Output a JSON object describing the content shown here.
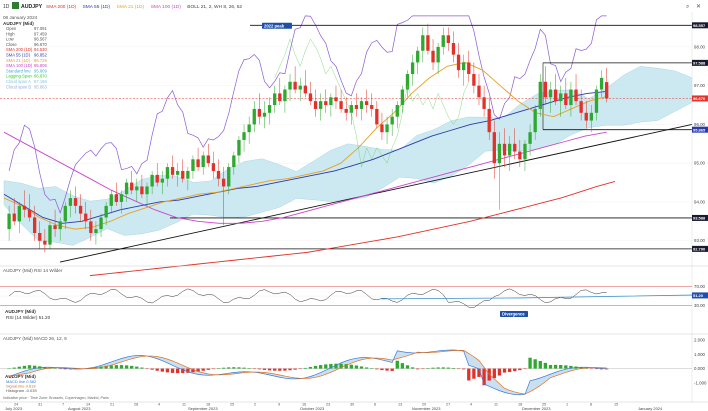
{
  "header": {
    "timeframe": "1D",
    "symbol": "AUDJPY",
    "indicators": [
      {
        "text": "SMA 200 (1D)",
        "color": "#e0322a"
      },
      {
        "text": "SMA 55 (1D)",
        "color": "#2a3aa8"
      },
      {
        "text": "SMA 21 (1D)",
        "color": "#e8a020"
      },
      {
        "text": "SMA 100 (1D)",
        "color": "#cc44cc"
      },
      {
        "text": "BOLL 21, 2, WH 8, 26, 52",
        "color": "#444444"
      }
    ]
  },
  "info_panel": {
    "date": "08 January 2024",
    "symbol_mid": "AUDJPY (Mid)",
    "rows": [
      {
        "label": "Open",
        "value": "97.091",
        "color": "#555555"
      },
      {
        "label": "High",
        "value": "97.459",
        "color": "#555555"
      },
      {
        "label": "Low",
        "value": "96.567",
        "color": "#555555"
      },
      {
        "label": "Close",
        "value": "96.670",
        "color": "#555555"
      },
      {
        "label": "SMA 200 (1D)",
        "value": "94.530",
        "color": "#e0322a"
      },
      {
        "label": "SMA 55 (1D)",
        "value": "96.852",
        "color": "#2a3aa8"
      },
      {
        "label": "SMA 21 (1D)",
        "value": "96.725",
        "color": "#e8a020"
      },
      {
        "label": "SMA 100 (1D)",
        "value": "95.806",
        "color": "#cc44cc"
      },
      {
        "label": "Standard line",
        "value": "95.809",
        "color": "#3aaed8"
      },
      {
        "label": "Lagging Span",
        "value": "96.670",
        "color": "#33cc33"
      },
      {
        "label": "Cloud span A",
        "value": "97.166",
        "color": "#7ec8e3"
      },
      {
        "label": "Cloud span B",
        "value": "95.863",
        "color": "#9ad"
      }
    ]
  },
  "annotations": {
    "peak_label": "2022 peak",
    "divergence_label": "Divergence"
  },
  "price_axis": {
    "labels": [
      "98.00",
      "97.00",
      "96.00",
      "95.00",
      "94.00",
      "93.00"
    ],
    "badges": [
      {
        "text": "98.557",
        "color": "#1a1a2e"
      },
      {
        "text": "97.588",
        "color": "#1a1a2e"
      },
      {
        "text": "96.670",
        "color": "#e0322a"
      },
      {
        "text": "95.865",
        "color": "#2a3aa8"
      },
      {
        "text": "93.588",
        "color": "#1a1a2e"
      },
      {
        "text": "92.790",
        "color": "#1a1a2e"
      }
    ]
  },
  "rsi_panel": {
    "title": "AUDJPY (Mid) RSI 14 Wilder",
    "value_line": "RSI (14 Wilder) 51.20",
    "axis_labels": [
      "70.00",
      "30.00"
    ]
  },
  "macd_panel": {
    "title": "AUDJPY (Mid) MACD 26, 12, 9",
    "legend": [
      {
        "text": "MACD line 0.582",
        "color": "#3a7bd5"
      },
      {
        "text": "Signal line 0.618",
        "color": "#e07020"
      },
      {
        "text": "Histogram -0.039",
        "color": "#555555"
      }
    ],
    "axis_labels": [
      "2.000",
      "1.000",
      "0.000",
      "-1.000"
    ]
  },
  "time_axis": {
    "months": [
      "July 2023",
      "August 2023",
      "September 2023",
      "October 2023",
      "November 2023",
      "December 2023",
      "January 2024"
    ],
    "days": [
      "24",
      "31",
      "7",
      "14",
      "21",
      "28",
      "4",
      "11",
      "18",
      "25",
      "2",
      "9",
      "16",
      "23",
      "30",
      "6",
      "13",
      "20",
      "27",
      "4",
      "11",
      "18",
      "25",
      "1",
      "8",
      "15"
    ],
    "footer": "Indicative price · Time Zone: Brussels, Copenhagen, Madrid, Paris"
  },
  "chart_data": {
    "type": "candlestick",
    "ylim": [
      92.4,
      98.9
    ],
    "candles": [
      {
        "o": 93.3,
        "h": 93.9,
        "l": 93.0,
        "c": 93.7
      },
      {
        "o": 93.7,
        "h": 94.1,
        "l": 93.4,
        "c": 93.5
      },
      {
        "o": 93.5,
        "h": 94.0,
        "l": 93.2,
        "c": 93.9
      },
      {
        "o": 93.9,
        "h": 94.3,
        "l": 93.6,
        "c": 93.8
      },
      {
        "o": 93.8,
        "h": 94.2,
        "l": 93.5,
        "c": 93.6
      },
      {
        "o": 93.6,
        "h": 93.9,
        "l": 93.0,
        "c": 93.2
      },
      {
        "o": 93.2,
        "h": 93.5,
        "l": 92.8,
        "c": 93.0
      },
      {
        "o": 93.0,
        "h": 93.3,
        "l": 92.7,
        "c": 92.9
      },
      {
        "o": 92.9,
        "h": 93.5,
        "l": 92.8,
        "c": 93.4
      },
      {
        "o": 93.4,
        "h": 93.8,
        "l": 93.1,
        "c": 93.3
      },
      {
        "o": 93.3,
        "h": 93.6,
        "l": 93.0,
        "c": 93.5
      },
      {
        "o": 93.5,
        "h": 94.0,
        "l": 93.3,
        "c": 93.9
      },
      {
        "o": 93.9,
        "h": 94.3,
        "l": 93.6,
        "c": 94.1
      },
      {
        "o": 94.1,
        "h": 94.4,
        "l": 93.7,
        "c": 93.9
      },
      {
        "o": 93.9,
        "h": 94.2,
        "l": 93.5,
        "c": 93.7
      },
      {
        "o": 93.7,
        "h": 94.0,
        "l": 93.3,
        "c": 93.5
      },
      {
        "o": 93.5,
        "h": 93.8,
        "l": 93.0,
        "c": 93.2
      },
      {
        "o": 93.2,
        "h": 93.5,
        "l": 92.9,
        "c": 93.3
      },
      {
        "o": 93.3,
        "h": 93.7,
        "l": 93.1,
        "c": 93.6
      },
      {
        "o": 93.6,
        "h": 94.0,
        "l": 93.4,
        "c": 93.9
      },
      {
        "o": 93.9,
        "h": 94.3,
        "l": 93.7,
        "c": 94.2
      },
      {
        "o": 94.2,
        "h": 94.5,
        "l": 93.9,
        "c": 94.0
      },
      {
        "o": 94.0,
        "h": 94.3,
        "l": 93.7,
        "c": 94.2
      },
      {
        "o": 94.2,
        "h": 94.6,
        "l": 94.0,
        "c": 94.5
      },
      {
        "o": 94.5,
        "h": 94.8,
        "l": 94.2,
        "c": 94.3
      },
      {
        "o": 94.3,
        "h": 94.6,
        "l": 94.0,
        "c": 94.4
      },
      {
        "o": 94.4,
        "h": 94.7,
        "l": 94.1,
        "c": 94.2
      },
      {
        "o": 94.2,
        "h": 94.5,
        "l": 93.9,
        "c": 94.4
      },
      {
        "o": 94.4,
        "h": 94.8,
        "l": 94.2,
        "c": 94.7
      },
      {
        "o": 94.7,
        "h": 95.0,
        "l": 94.4,
        "c": 94.5
      },
      {
        "o": 94.5,
        "h": 94.8,
        "l": 94.2,
        "c": 94.6
      },
      {
        "o": 94.6,
        "h": 95.0,
        "l": 94.4,
        "c": 94.9
      },
      {
        "o": 94.9,
        "h": 95.2,
        "l": 94.6,
        "c": 94.7
      },
      {
        "o": 94.7,
        "h": 95.0,
        "l": 94.4,
        "c": 94.8
      },
      {
        "o": 94.8,
        "h": 95.1,
        "l": 94.5,
        "c": 94.6
      },
      {
        "o": 94.6,
        "h": 94.9,
        "l": 94.3,
        "c": 94.8
      },
      {
        "o": 94.8,
        "h": 95.2,
        "l": 94.6,
        "c": 95.1
      },
      {
        "o": 95.1,
        "h": 95.4,
        "l": 94.8,
        "c": 94.9
      },
      {
        "o": 94.9,
        "h": 95.3,
        "l": 94.7,
        "c": 95.2
      },
      {
        "o": 95.2,
        "h": 95.5,
        "l": 94.9,
        "c": 95.0
      },
      {
        "o": 95.0,
        "h": 95.3,
        "l": 94.6,
        "c": 94.8
      },
      {
        "o": 94.8,
        "h": 95.1,
        "l": 94.4,
        "c": 94.6
      },
      {
        "o": 94.6,
        "h": 94.9,
        "l": 93.4,
        "c": 94.4
      },
      {
        "o": 94.4,
        "h": 95.0,
        "l": 94.2,
        "c": 94.9
      },
      {
        "o": 94.9,
        "h": 95.3,
        "l": 94.7,
        "c": 95.2
      },
      {
        "o": 95.2,
        "h": 95.7,
        "l": 95.0,
        "c": 95.6
      },
      {
        "o": 95.6,
        "h": 96.0,
        "l": 95.3,
        "c": 95.8
      },
      {
        "o": 95.8,
        "h": 96.2,
        "l": 95.5,
        "c": 96.0
      },
      {
        "o": 96.0,
        "h": 96.6,
        "l": 95.8,
        "c": 96.4
      },
      {
        "o": 96.4,
        "h": 96.8,
        "l": 96.0,
        "c": 96.2
      },
      {
        "o": 96.2,
        "h": 96.6,
        "l": 95.9,
        "c": 96.3
      },
      {
        "o": 96.3,
        "h": 96.7,
        "l": 96.0,
        "c": 96.5
      },
      {
        "o": 96.5,
        "h": 97.0,
        "l": 96.3,
        "c": 96.8
      },
      {
        "o": 96.8,
        "h": 97.2,
        "l": 96.5,
        "c": 96.6
      },
      {
        "o": 96.6,
        "h": 97.0,
        "l": 96.3,
        "c": 96.9
      },
      {
        "o": 96.9,
        "h": 97.3,
        "l": 96.6,
        "c": 97.1
      },
      {
        "o": 97.1,
        "h": 97.5,
        "l": 96.8,
        "c": 96.9
      },
      {
        "o": 96.9,
        "h": 97.2,
        "l": 96.6,
        "c": 97.0
      },
      {
        "o": 97.0,
        "h": 97.4,
        "l": 96.7,
        "c": 96.8
      },
      {
        "o": 96.8,
        "h": 97.1,
        "l": 96.5,
        "c": 96.6
      },
      {
        "o": 96.6,
        "h": 96.9,
        "l": 96.2,
        "c": 96.4
      },
      {
        "o": 96.4,
        "h": 96.8,
        "l": 96.1,
        "c": 96.6
      },
      {
        "o": 96.6,
        "h": 96.9,
        "l": 96.3,
        "c": 96.5
      },
      {
        "o": 96.5,
        "h": 96.8,
        "l": 96.2,
        "c": 96.7
      },
      {
        "o": 96.7,
        "h": 97.0,
        "l": 96.4,
        "c": 96.6
      },
      {
        "o": 96.6,
        "h": 96.9,
        "l": 96.3,
        "c": 96.4
      },
      {
        "o": 96.4,
        "h": 96.7,
        "l": 96.1,
        "c": 96.3
      },
      {
        "o": 96.3,
        "h": 96.6,
        "l": 96.0,
        "c": 96.5
      },
      {
        "o": 96.5,
        "h": 96.8,
        "l": 96.2,
        "c": 96.4
      },
      {
        "o": 96.4,
        "h": 96.7,
        "l": 96.1,
        "c": 96.6
      },
      {
        "o": 96.6,
        "h": 96.9,
        "l": 96.3,
        "c": 96.5
      },
      {
        "o": 96.5,
        "h": 96.8,
        "l": 96.2,
        "c": 96.4
      },
      {
        "o": 96.4,
        "h": 96.6,
        "l": 95.9,
        "c": 96.0
      },
      {
        "o": 96.0,
        "h": 96.3,
        "l": 95.6,
        "c": 95.8
      },
      {
        "o": 95.8,
        "h": 96.2,
        "l": 95.5,
        "c": 96.0
      },
      {
        "o": 96.0,
        "h": 96.4,
        "l": 95.7,
        "c": 96.2
      },
      {
        "o": 96.2,
        "h": 96.6,
        "l": 95.9,
        "c": 96.5
      },
      {
        "o": 96.5,
        "h": 97.0,
        "l": 96.3,
        "c": 96.9
      },
      {
        "o": 96.9,
        "h": 97.4,
        "l": 96.7,
        "c": 97.3
      },
      {
        "o": 97.3,
        "h": 97.8,
        "l": 97.0,
        "c": 97.6
      },
      {
        "o": 97.6,
        "h": 98.0,
        "l": 97.3,
        "c": 97.9
      },
      {
        "o": 97.9,
        "h": 98.5,
        "l": 97.6,
        "c": 98.3
      },
      {
        "o": 98.3,
        "h": 98.6,
        "l": 97.8,
        "c": 97.9
      },
      {
        "o": 97.9,
        "h": 98.2,
        "l": 97.4,
        "c": 97.6
      },
      {
        "o": 97.6,
        "h": 98.1,
        "l": 97.3,
        "c": 98.0
      },
      {
        "o": 98.0,
        "h": 98.5,
        "l": 97.8,
        "c": 98.3
      },
      {
        "o": 98.3,
        "h": 98.5,
        "l": 97.9,
        "c": 98.1
      },
      {
        "o": 98.1,
        "h": 98.4,
        "l": 97.6,
        "c": 97.8
      },
      {
        "o": 97.8,
        "h": 98.1,
        "l": 97.2,
        "c": 97.4
      },
      {
        "o": 97.4,
        "h": 97.8,
        "l": 97.0,
        "c": 97.6
      },
      {
        "o": 97.6,
        "h": 97.9,
        "l": 97.1,
        "c": 97.3
      },
      {
        "o": 97.3,
        "h": 97.6,
        "l": 96.8,
        "c": 97.0
      },
      {
        "o": 97.0,
        "h": 97.3,
        "l": 96.5,
        "c": 96.7
      },
      {
        "o": 96.7,
        "h": 97.0,
        "l": 96.2,
        "c": 96.4
      },
      {
        "o": 96.4,
        "h": 96.7,
        "l": 95.6,
        "c": 95.8
      },
      {
        "o": 95.8,
        "h": 96.1,
        "l": 94.6,
        "c": 95.0
      },
      {
        "o": 95.0,
        "h": 95.8,
        "l": 93.8,
        "c": 95.5
      },
      {
        "o": 95.5,
        "h": 95.9,
        "l": 94.9,
        "c": 95.2
      },
      {
        "o": 95.2,
        "h": 95.7,
        "l": 94.8,
        "c": 95.5
      },
      {
        "o": 95.5,
        "h": 95.9,
        "l": 95.1,
        "c": 95.3
      },
      {
        "o": 95.3,
        "h": 95.6,
        "l": 94.9,
        "c": 95.1
      },
      {
        "o": 95.1,
        "h": 95.6,
        "l": 94.8,
        "c": 95.5
      },
      {
        "o": 95.5,
        "h": 96.0,
        "l": 95.2,
        "c": 95.8
      },
      {
        "o": 95.8,
        "h": 96.5,
        "l": 95.6,
        "c": 96.4
      },
      {
        "o": 96.4,
        "h": 97.3,
        "l": 96.2,
        "c": 97.1
      },
      {
        "o": 97.1,
        "h": 97.5,
        "l": 96.5,
        "c": 96.7
      },
      {
        "o": 96.7,
        "h": 97.1,
        "l": 96.3,
        "c": 96.9
      },
      {
        "o": 96.9,
        "h": 97.3,
        "l": 96.5,
        "c": 96.6
      },
      {
        "o": 96.6,
        "h": 97.0,
        "l": 96.2,
        "c": 96.8
      },
      {
        "o": 96.8,
        "h": 97.2,
        "l": 96.4,
        "c": 96.5
      },
      {
        "o": 96.5,
        "h": 97.1,
        "l": 96.2,
        "c": 96.9
      },
      {
        "o": 96.9,
        "h": 97.3,
        "l": 96.5,
        "c": 96.6
      },
      {
        "o": 96.6,
        "h": 96.9,
        "l": 96.1,
        "c": 96.3
      },
      {
        "o": 96.3,
        "h": 96.6,
        "l": 95.9,
        "c": 96.1
      },
      {
        "o": 96.1,
        "h": 96.5,
        "l": 95.8,
        "c": 96.3
      },
      {
        "o": 96.3,
        "h": 97.0,
        "l": 96.1,
        "c": 96.9
      },
      {
        "o": 96.9,
        "h": 97.4,
        "l": 96.7,
        "c": 97.2
      },
      {
        "o": 97.091,
        "h": 97.459,
        "l": 96.567,
        "c": 96.67
      }
    ],
    "sma200": [
      92.1,
      92.15,
      92.2,
      92.25,
      92.3,
      92.35,
      92.4,
      92.45,
      92.5,
      92.55,
      92.6,
      92.65,
      92.7,
      92.78,
      92.86,
      92.94,
      93.02,
      93.1,
      93.2,
      93.3,
      93.4,
      93.5,
      93.62,
      93.74,
      93.86,
      93.98,
      94.1,
      94.25,
      94.4,
      94.53
    ],
    "sma55": [
      94.2,
      93.9,
      93.6,
      93.45,
      93.5,
      93.65,
      93.8,
      93.9,
      94.0,
      94.05,
      94.15,
      94.25,
      94.35,
      94.4,
      94.5,
      94.6,
      94.7,
      94.8,
      94.95,
      95.1,
      95.3,
      95.5,
      95.7,
      95.85,
      96.0,
      96.1,
      96.25,
      96.4,
      96.55,
      96.7,
      96.8,
      96.85
    ],
    "sma21": [
      94.1,
      93.9,
      93.6,
      93.4,
      93.3,
      93.35,
      93.5,
      93.7,
      93.85,
      94.0,
      94.1,
      94.2,
      94.25,
      94.35,
      94.45,
      94.55,
      94.6,
      94.7,
      94.8,
      95.0,
      95.4,
      95.9,
      96.3,
      96.8,
      97.2,
      97.5,
      97.6,
      97.4,
      97.0,
      96.6,
      96.3,
      96.2,
      96.4,
      96.6,
      96.72
    ],
    "sma100": [
      95.8,
      95.5,
      95.2,
      94.9,
      94.6,
      94.3,
      94.05,
      93.8,
      93.6,
      93.5,
      93.45,
      93.45,
      93.5,
      93.6,
      93.75,
      93.9,
      94.05,
      94.2,
      94.35,
      94.5,
      94.65,
      94.8,
      94.95,
      95.1,
      95.25,
      95.4,
      95.55,
      95.7,
      95.8
    ],
    "rsi_range": [
      0,
      100
    ]
  }
}
